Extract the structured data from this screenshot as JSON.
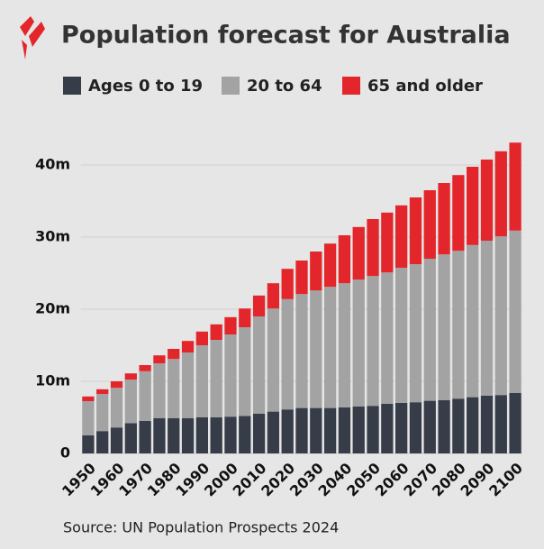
{
  "chart_data": {
    "type": "stacked_bar",
    "title": "Population forecast for Australia",
    "source": "Source: UN Population Prospects 2024",
    "categories": [
      "1950",
      null,
      "1960",
      null,
      "1970",
      null,
      "1980",
      null,
      "1990",
      null,
      "2000",
      null,
      "2010",
      null,
      "2020",
      null,
      "2030",
      null,
      "2040",
      null,
      "2050",
      null,
      "2060",
      null,
      "2070",
      null,
      "2080",
      null,
      "2090",
      null,
      "2100"
    ],
    "series": [
      {
        "name": "Ages 0 to 19",
        "color": "#363c48",
        "values": [
          2.5,
          3.1,
          3.6,
          4.2,
          4.5,
          4.9,
          4.9,
          4.9,
          5.0,
          5.0,
          5.1,
          5.2,
          5.5,
          5.8,
          6.1,
          6.3,
          6.3,
          6.3,
          6.4,
          6.5,
          6.6,
          6.9,
          7.0,
          7.1,
          7.3,
          7.4,
          7.6,
          7.8,
          8.0,
          8.1,
          8.4
        ]
      },
      {
        "name": "20 to 64",
        "color": "#a3a3a3",
        "values": [
          4.75,
          5.15,
          5.5,
          6.05,
          6.9,
          7.6,
          8.2,
          9.1,
          10.0,
          10.75,
          11.4,
          12.3,
          13.5,
          14.3,
          15.3,
          15.8,
          16.3,
          16.8,
          17.2,
          17.6,
          18.0,
          18.2,
          18.75,
          19.15,
          19.7,
          20.2,
          20.5,
          21.1,
          21.5,
          22.0,
          22.5
        ]
      },
      {
        "name": "65 and older",
        "color": "#e3262b",
        "values": [
          0.65,
          0.65,
          0.9,
          0.85,
          0.85,
          1.1,
          1.4,
          1.6,
          1.9,
          2.15,
          2.4,
          2.6,
          2.9,
          3.5,
          4.2,
          4.65,
          5.4,
          6.0,
          6.65,
          7.3,
          7.9,
          8.3,
          8.65,
          9.25,
          9.5,
          9.9,
          10.5,
          10.85,
          11.25,
          11.8,
          12.2
        ]
      }
    ],
    "ylim": [
      0,
      44
    ],
    "yticks": [
      0,
      {
        "value": 10,
        "label": "10m"
      },
      {
        "value": 20,
        "label": "20m"
      },
      {
        "value": 30,
        "label": "30m"
      },
      {
        "value": 40,
        "label": "40m"
      }
    ],
    "grid": true
  }
}
